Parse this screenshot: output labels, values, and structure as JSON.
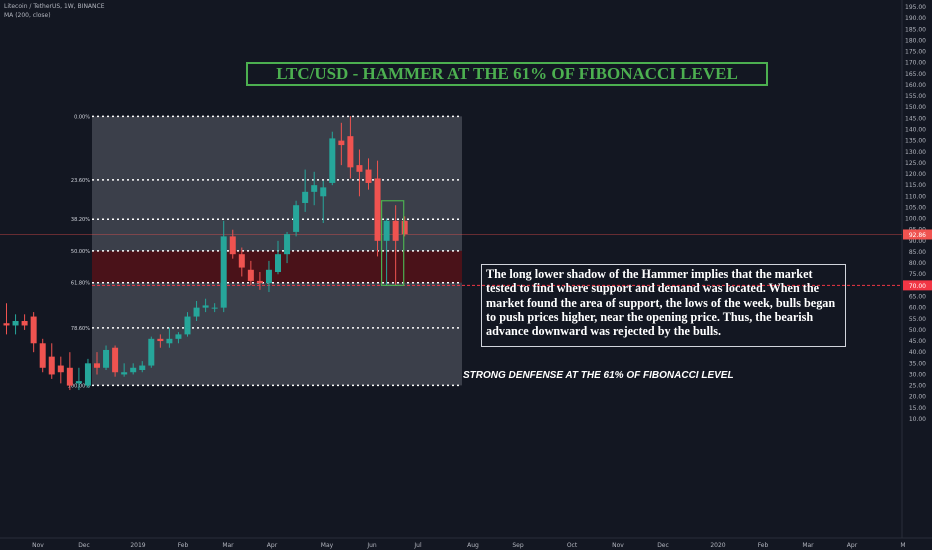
{
  "header": {
    "symbol_line": "Litecoin / TetherUS, 1W, BINANCE",
    "indicator_line": "MA (200, close)"
  },
  "annotations": {
    "title": "LTC/USD - HAMMER AT THE 61% OF FIBONACCI LEVEL",
    "note": "The long lower shadow of the Hammer implies that the market tested to find where support and demand was located. When the market found the area of support, the lows of the week, bulls began to push prices higher, near the opening price. Thus, the bearish advance downward was rejected by the bulls.",
    "defense": "STRONG DENFENSE AT THE 61% OF FIBONACCI LEVEL"
  },
  "colors": {
    "background": "#131722",
    "bull": "#26a69a",
    "bear": "#ef5350",
    "fib_zone": "#434651",
    "golden_zone": "#4a1219",
    "title_green": "#4caf50",
    "hammer_box": "#4caf50",
    "support_line": "#f23645"
  },
  "chart_data": {
    "type": "candlestick",
    "interval": "1W",
    "y_axis": {
      "min": 10,
      "max": 195,
      "tick_labels": [
        "195.00",
        "190.00",
        "185.00",
        "180.00",
        "175.00",
        "170.00",
        "165.00",
        "160.00",
        "155.00",
        "150.00",
        "145.00",
        "140.00",
        "135.00",
        "130.00",
        "125.00",
        "120.00",
        "115.00",
        "110.00",
        "105.00",
        "100.00",
        "95.00",
        "90.00",
        "85.00",
        "80.00",
        "75.00",
        "70.00",
        "65.00",
        "60.00",
        "55.00",
        "50.00",
        "45.00",
        "40.00",
        "35.00",
        "30.00",
        "25.00",
        "20.00",
        "15.00",
        "10.00"
      ],
      "last_price_label": "92.86",
      "last_price": 92.86,
      "support_label": "70.00",
      "support_price": 70
    },
    "x_axis": {
      "tick_labels": [
        "Nov",
        "Dec",
        "2019",
        "Feb",
        "Mar",
        "Apr",
        "May",
        "Jun",
        "Jul",
        "Aug",
        "Sep",
        "Oct",
        "Nov",
        "Dec",
        "2020",
        "Feb",
        "Mar",
        "Apr",
        "M"
      ]
    },
    "fibonacci": {
      "levels": [
        {
          "label": "0.00%",
          "price": 145.9
        },
        {
          "label": "23.60%",
          "price": 117.4
        },
        {
          "label": "38.20%",
          "price": 99.7
        },
        {
          "label": "50.00%",
          "price": 85.5
        },
        {
          "label": "61.80%",
          "price": 71.2
        },
        {
          "label": "78.60%",
          "price": 50.9
        },
        {
          "label": "100.00%",
          "price": 25.1
        }
      ]
    },
    "candles": [
      {
        "o": 53,
        "h": 62,
        "l": 48,
        "c": 52
      },
      {
        "o": 52,
        "h": 57,
        "l": 48,
        "c": 54
      },
      {
        "o": 54,
        "h": 57,
        "l": 50,
        "c": 52
      },
      {
        "o": 56,
        "h": 58,
        "l": 40,
        "c": 44
      },
      {
        "o": 44,
        "h": 46,
        "l": 31,
        "c": 33
      },
      {
        "o": 38,
        "h": 44,
        "l": 28,
        "c": 30
      },
      {
        "o": 34,
        "h": 38,
        "l": 26,
        "c": 31
      },
      {
        "o": 33,
        "h": 40,
        "l": 23,
        "c": 25
      },
      {
        "o": 26,
        "h": 33,
        "l": 23,
        "c": 27
      },
      {
        "o": 25,
        "h": 37,
        "l": 24,
        "c": 35
      },
      {
        "o": 35,
        "h": 40,
        "l": 30,
        "c": 33
      },
      {
        "o": 33,
        "h": 43,
        "l": 32,
        "c": 41
      },
      {
        "o": 42,
        "h": 43,
        "l": 29,
        "c": 31
      },
      {
        "o": 30,
        "h": 35,
        "l": 29,
        "c": 31
      },
      {
        "o": 31,
        "h": 35,
        "l": 30,
        "c": 33
      },
      {
        "o": 32,
        "h": 36,
        "l": 31,
        "c": 34
      },
      {
        "o": 34,
        "h": 47,
        "l": 33,
        "c": 46
      },
      {
        "o": 46,
        "h": 48,
        "l": 42,
        "c": 45
      },
      {
        "o": 44,
        "h": 51,
        "l": 42,
        "c": 46
      },
      {
        "o": 46,
        "h": 49,
        "l": 44,
        "c": 48
      },
      {
        "o": 48,
        "h": 58,
        "l": 47,
        "c": 56
      },
      {
        "o": 56,
        "h": 63,
        "l": 54,
        "c": 60
      },
      {
        "o": 60,
        "h": 64,
        "l": 58,
        "c": 61
      },
      {
        "o": 60,
        "h": 62,
        "l": 58,
        "c": 60
      },
      {
        "o": 60,
        "h": 99,
        "l": 58,
        "c": 92
      },
      {
        "o": 92,
        "h": 95,
        "l": 82,
        "c": 84
      },
      {
        "o": 84,
        "h": 87,
        "l": 74,
        "c": 78
      },
      {
        "o": 77,
        "h": 81,
        "l": 70,
        "c": 72
      },
      {
        "o": 72,
        "h": 76,
        "l": 68,
        "c": 71
      },
      {
        "o": 71,
        "h": 81,
        "l": 67,
        "c": 77
      },
      {
        "o": 76,
        "h": 90,
        "l": 75,
        "c": 84
      },
      {
        "o": 84,
        "h": 94,
        "l": 80,
        "c": 93
      },
      {
        "o": 94,
        "h": 108,
        "l": 92,
        "c": 106
      },
      {
        "o": 107,
        "h": 122,
        "l": 103,
        "c": 112
      },
      {
        "o": 112,
        "h": 121,
        "l": 106,
        "c": 115
      },
      {
        "o": 110,
        "h": 117,
        "l": 98,
        "c": 114
      },
      {
        "o": 116,
        "h": 139,
        "l": 115,
        "c": 136
      },
      {
        "o": 135,
        "h": 143,
        "l": 124,
        "c": 133
      },
      {
        "o": 137,
        "h": 146,
        "l": 118,
        "c": 123
      },
      {
        "o": 124,
        "h": 131,
        "l": 110,
        "c": 121
      },
      {
        "o": 122,
        "h": 127,
        "l": 113,
        "c": 116
      },
      {
        "o": 118,
        "h": 126,
        "l": 83,
        "c": 90
      },
      {
        "o": 90,
        "h": 100,
        "l": 70,
        "c": 99
      },
      {
        "o": 99,
        "h": 106,
        "l": 70,
        "c": 90
      },
      {
        "o": 99,
        "h": 101,
        "l": 92,
        "c": 93
      }
    ]
  }
}
